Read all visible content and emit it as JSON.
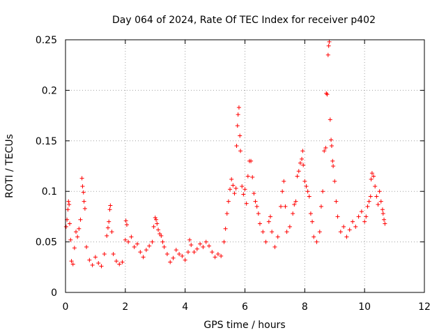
{
  "chart_data": {
    "type": "scatter",
    "title": "Day 064 of 2024, Rate Of TEC Index for receiver p402",
    "xlabel": "GPS time / hours",
    "ylabel": "ROTI / TECUs",
    "xlim": [
      0,
      12
    ],
    "ylim": [
      0,
      0.25
    ],
    "xticks": [
      0,
      2,
      4,
      6,
      8,
      10,
      12
    ],
    "yticks": [
      0,
      0.05,
      0.1,
      0.15,
      0.2,
      0.25
    ],
    "ytick_labels": [
      "0",
      "0.05",
      "0.1",
      "0.15",
      "0.2",
      "0.25"
    ],
    "grid": true,
    "marker": "plus",
    "color": "#ff0000",
    "series": [
      {
        "name": "ROTI",
        "points": [
          [
            0.02,
            0.065
          ],
          [
            0.05,
            0.072
          ],
          [
            0.08,
            0.082
          ],
          [
            0.1,
            0.09
          ],
          [
            0.12,
            0.087
          ],
          [
            0.14,
            0.068
          ],
          [
            0.17,
            0.052
          ],
          [
            0.2,
            0.031
          ],
          [
            0.25,
            0.028
          ],
          [
            0.3,
            0.044
          ],
          [
            0.35,
            0.06
          ],
          [
            0.4,
            0.055
          ],
          [
            0.45,
            0.063
          ],
          [
            0.5,
            0.072
          ],
          [
            0.55,
            0.113
          ],
          [
            0.57,
            0.105
          ],
          [
            0.6,
            0.099
          ],
          [
            0.62,
            0.09
          ],
          [
            0.65,
            0.083
          ],
          [
            0.7,
            0.045
          ],
          [
            0.8,
            0.032
          ],
          [
            0.9,
            0.027
          ],
          [
            1.0,
            0.035
          ],
          [
            1.1,
            0.029
          ],
          [
            1.2,
            0.026
          ],
          [
            1.3,
            0.038
          ],
          [
            1.38,
            0.056
          ],
          [
            1.42,
            0.064
          ],
          [
            1.45,
            0.07
          ],
          [
            1.48,
            0.082
          ],
          [
            1.5,
            0.086
          ],
          [
            1.55,
            0.06
          ],
          [
            1.6,
            0.038
          ],
          [
            1.7,
            0.031
          ],
          [
            1.8,
            0.028
          ],
          [
            1.9,
            0.03
          ],
          [
            2.0,
            0.052
          ],
          [
            2.02,
            0.071
          ],
          [
            2.05,
            0.067
          ],
          [
            2.1,
            0.05
          ],
          [
            2.2,
            0.055
          ],
          [
            2.3,
            0.045
          ],
          [
            2.4,
            0.048
          ],
          [
            2.5,
            0.04
          ],
          [
            2.6,
            0.035
          ],
          [
            2.7,
            0.042
          ],
          [
            2.8,
            0.046
          ],
          [
            2.9,
            0.05
          ],
          [
            2.95,
            0.065
          ],
          [
            3.0,
            0.074
          ],
          [
            3.03,
            0.072
          ],
          [
            3.06,
            0.068
          ],
          [
            3.1,
            0.062
          ],
          [
            3.15,
            0.058
          ],
          [
            3.2,
            0.056
          ],
          [
            3.25,
            0.05
          ],
          [
            3.3,
            0.045
          ],
          [
            3.4,
            0.038
          ],
          [
            3.5,
            0.03
          ],
          [
            3.6,
            0.034
          ],
          [
            3.7,
            0.042
          ],
          [
            3.8,
            0.038
          ],
          [
            3.9,
            0.036
          ],
          [
            4.0,
            0.032
          ],
          [
            4.1,
            0.04
          ],
          [
            4.15,
            0.052
          ],
          [
            4.2,
            0.047
          ],
          [
            4.3,
            0.04
          ],
          [
            4.4,
            0.043
          ],
          [
            4.5,
            0.048
          ],
          [
            4.6,
            0.045
          ],
          [
            4.7,
            0.05
          ],
          [
            4.8,
            0.046
          ],
          [
            4.9,
            0.04
          ],
          [
            5.0,
            0.035
          ],
          [
            5.1,
            0.038
          ],
          [
            5.2,
            0.036
          ],
          [
            5.3,
            0.05
          ],
          [
            5.35,
            0.063
          ],
          [
            5.4,
            0.078
          ],
          [
            5.45,
            0.09
          ],
          [
            5.5,
            0.102
          ],
          [
            5.55,
            0.112
          ],
          [
            5.6,
            0.106
          ],
          [
            5.65,
            0.098
          ],
          [
            5.7,
            0.103
          ],
          [
            5.72,
            0.145
          ],
          [
            5.75,
            0.165
          ],
          [
            5.77,
            0.176
          ],
          [
            5.8,
            0.183
          ],
          [
            5.83,
            0.155
          ],
          [
            5.85,
            0.14
          ],
          [
            5.9,
            0.105
          ],
          [
            5.95,
            0.097
          ],
          [
            6.0,
            0.102
          ],
          [
            6.05,
            0.088
          ],
          [
            6.1,
            0.115
          ],
          [
            6.15,
            0.13
          ],
          [
            6.2,
            0.13
          ],
          [
            6.25,
            0.114
          ],
          [
            6.3,
            0.098
          ],
          [
            6.35,
            0.09
          ],
          [
            6.4,
            0.085
          ],
          [
            6.45,
            0.078
          ],
          [
            6.5,
            0.068
          ],
          [
            6.6,
            0.06
          ],
          [
            6.7,
            0.05
          ],
          [
            6.8,
            0.07
          ],
          [
            6.85,
            0.075
          ],
          [
            6.9,
            0.06
          ],
          [
            7.0,
            0.045
          ],
          [
            7.1,
            0.055
          ],
          [
            7.2,
            0.085
          ],
          [
            7.25,
            0.1
          ],
          [
            7.3,
            0.11
          ],
          [
            7.35,
            0.085
          ],
          [
            7.4,
            0.06
          ],
          [
            7.5,
            0.065
          ],
          [
            7.6,
            0.078
          ],
          [
            7.65,
            0.087
          ],
          [
            7.7,
            0.09
          ],
          [
            7.75,
            0.115
          ],
          [
            7.8,
            0.12
          ],
          [
            7.85,
            0.128
          ],
          [
            7.9,
            0.132
          ],
          [
            7.93,
            0.14
          ],
          [
            7.95,
            0.126
          ],
          [
            8.0,
            0.11
          ],
          [
            8.05,
            0.105
          ],
          [
            8.1,
            0.1
          ],
          [
            8.15,
            0.095
          ],
          [
            8.2,
            0.078
          ],
          [
            8.25,
            0.07
          ],
          [
            8.3,
            0.055
          ],
          [
            8.4,
            0.05
          ],
          [
            8.5,
            0.06
          ],
          [
            8.55,
            0.085
          ],
          [
            8.6,
            0.1
          ],
          [
            8.65,
            0.14
          ],
          [
            8.7,
            0.143
          ],
          [
            8.72,
            0.197
          ],
          [
            8.75,
            0.196
          ],
          [
            8.78,
            0.235
          ],
          [
            8.8,
            0.244
          ],
          [
            8.82,
            0.248
          ],
          [
            8.85,
            0.171
          ],
          [
            8.88,
            0.151
          ],
          [
            8.9,
            0.145
          ],
          [
            8.93,
            0.13
          ],
          [
            8.95,
            0.125
          ],
          [
            9.0,
            0.11
          ],
          [
            9.05,
            0.09
          ],
          [
            9.1,
            0.075
          ],
          [
            9.2,
            0.06
          ],
          [
            9.3,
            0.065
          ],
          [
            9.4,
            0.055
          ],
          [
            9.5,
            0.062
          ],
          [
            9.6,
            0.07
          ],
          [
            9.7,
            0.065
          ],
          [
            9.8,
            0.075
          ],
          [
            9.9,
            0.08
          ],
          [
            10.0,
            0.07
          ],
          [
            10.05,
            0.075
          ],
          [
            10.1,
            0.085
          ],
          [
            10.15,
            0.09
          ],
          [
            10.2,
            0.095
          ],
          [
            10.22,
            0.112
          ],
          [
            10.25,
            0.118
          ],
          [
            10.3,
            0.115
          ],
          [
            10.35,
            0.105
          ],
          [
            10.4,
            0.095
          ],
          [
            10.45,
            0.087
          ],
          [
            10.5,
            0.1
          ],
          [
            10.55,
            0.09
          ],
          [
            10.6,
            0.082
          ],
          [
            10.62,
            0.078
          ],
          [
            10.65,
            0.072
          ],
          [
            10.68,
            0.068
          ]
        ]
      }
    ]
  }
}
